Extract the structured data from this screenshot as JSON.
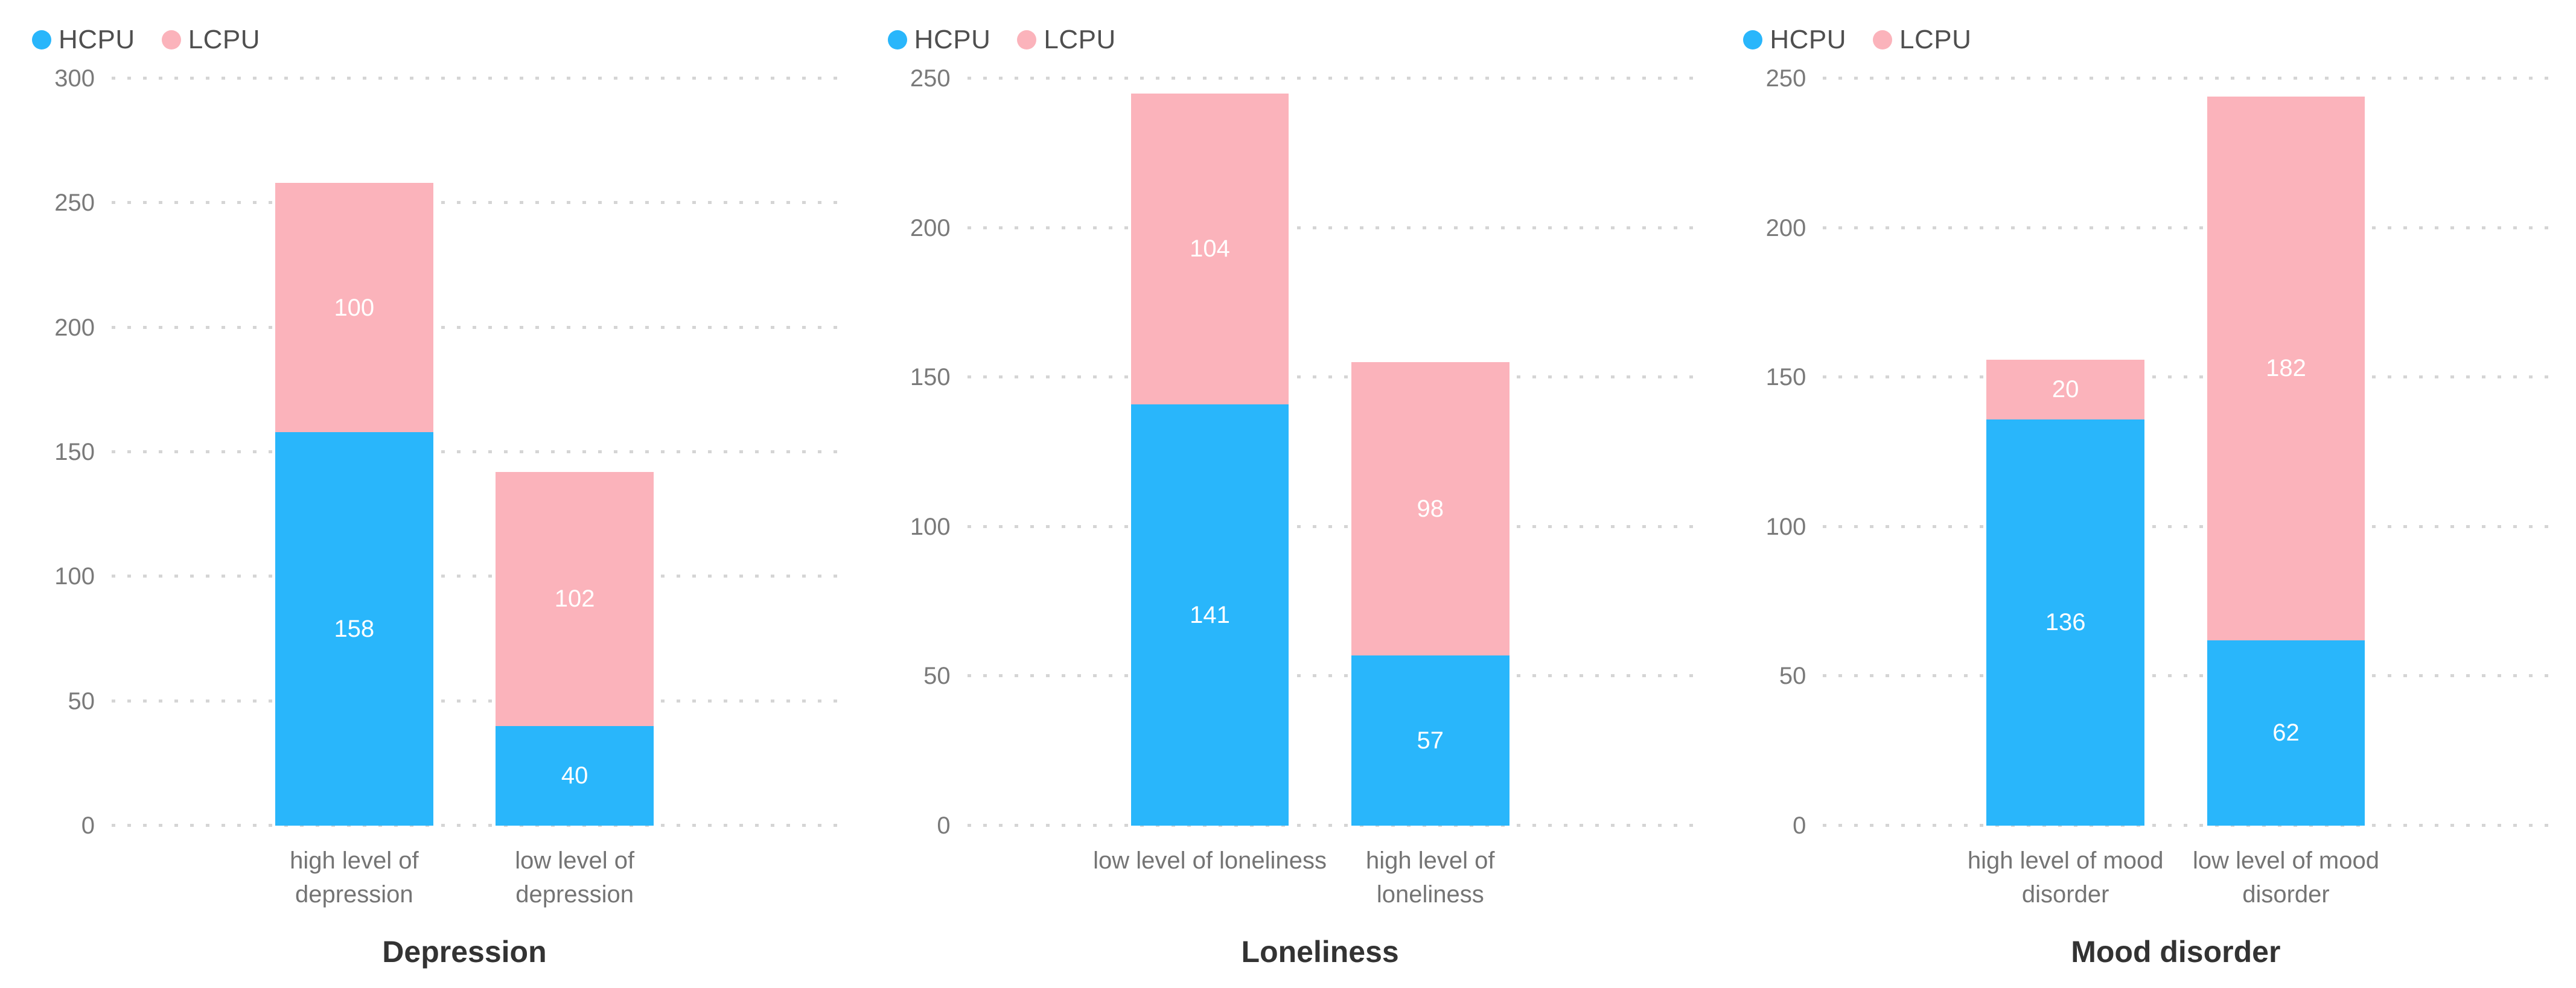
{
  "colors": {
    "hcpu": "#29b6fb",
    "lcpu": "#fbb3bb",
    "gridline": "#d5d5d5",
    "tick_text": "#7a7a7a",
    "category_text": "#747474",
    "title_text": "#333333",
    "value_text": "#ffffff",
    "legend_text": "#4f4f4f",
    "background": "#ffffff"
  },
  "layout_hints": {
    "bar_center_percents": [
      33,
      63
    ],
    "legend_position": "top-left",
    "grid": "dotted horizontal"
  },
  "chart_data": [
    {
      "type": "bar",
      "stacked": true,
      "title": "Depression",
      "categories": [
        "high level of depression",
        "low level of depression"
      ],
      "series": [
        {
          "name": "HCPU",
          "color_key": "hcpu",
          "values": [
            158,
            40
          ]
        },
        {
          "name": "LCPU",
          "color_key": "lcpu",
          "values": [
            100,
            102
          ]
        }
      ],
      "totals": [
        258,
        142
      ],
      "ylim": [
        0,
        300
      ],
      "ytick_step": 50,
      "ytick_labels": [
        "0",
        "50",
        "100",
        "150",
        "200",
        "250",
        "300"
      ],
      "xlabel": "Depression",
      "ylabel": ""
    },
    {
      "type": "bar",
      "stacked": true,
      "title": "Loneliness",
      "categories": [
        "low level of loneliness",
        "high level of loneliness"
      ],
      "series": [
        {
          "name": "HCPU",
          "color_key": "hcpu",
          "values": [
            141,
            57
          ]
        },
        {
          "name": "LCPU",
          "color_key": "lcpu",
          "values": [
            104,
            98
          ]
        }
      ],
      "totals": [
        245,
        155
      ],
      "ylim": [
        0,
        250
      ],
      "ytick_step": 50,
      "ytick_labels": [
        "0",
        "50",
        "100",
        "150",
        "200",
        "250"
      ],
      "xlabel": "Loneliness",
      "ylabel": ""
    },
    {
      "type": "bar",
      "stacked": true,
      "title": "Mood disorder",
      "categories": [
        "high level of mood disorder",
        "low level of mood disorder"
      ],
      "series": [
        {
          "name": "HCPU",
          "color_key": "hcpu",
          "values": [
            136,
            62
          ]
        },
        {
          "name": "LCPU",
          "color_key": "lcpu",
          "values": [
            20,
            182
          ]
        }
      ],
      "totals": [
        156,
        244
      ],
      "ylim": [
        0,
        250
      ],
      "ytick_step": 50,
      "ytick_labels": [
        "0",
        "50",
        "100",
        "150",
        "200",
        "250"
      ],
      "xlabel": "Mood disorder",
      "ylabel": ""
    }
  ]
}
